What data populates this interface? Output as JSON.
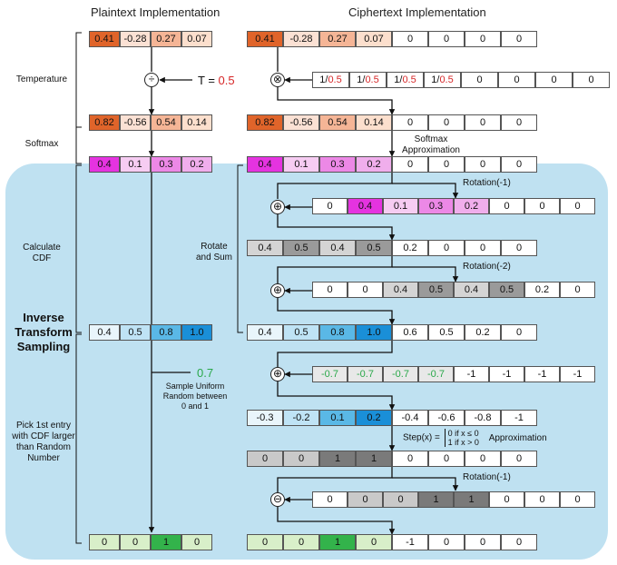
{
  "headers": {
    "plaintext": "Plaintext Implementation",
    "ciphertext": "Ciphertext Implementation"
  },
  "left_labels": {
    "temperature": "Temperature",
    "softmax": "Softmax",
    "calculate_cdf_1": "Calculate",
    "calculate_cdf_2": "CDF",
    "inverse_1": "Inverse",
    "inverse_2": "Transform",
    "inverse_3": "Sampling",
    "pick_1": "Pick 1st entry",
    "pick_2": "with CDF larger",
    "pick_3": "than Random",
    "pick_4": "Number"
  },
  "rotate_sum": {
    "line1": "Rotate",
    "line2": "and Sum"
  },
  "temp": {
    "prefix": "T = ",
    "value": "0.5"
  },
  "softmax_approx": {
    "line1": "Softmax",
    "line2": "Approximation"
  },
  "rotations": {
    "r1": "Rotation(-1)",
    "r2": "Rotation(-2)",
    "r3": "Rotation(-1)"
  },
  "uniform": {
    "value": "0.7",
    "line1": "Sample Uniform",
    "line2": "Random between",
    "line3": "0 and 1"
  },
  "step": {
    "prefix": "Step(x) =",
    "case1": "0 if x ≤ 0",
    "case2": "1 if x > 0",
    "suffix": "Approximation"
  },
  "operators": {
    "divide": "÷",
    "multiply": "⊗",
    "add": "⊕",
    "subtract": "⊖"
  },
  "rows": {
    "p_logits": {
      "cells": [
        "0.41",
        "-0.28",
        "0.27",
        "0.07"
      ],
      "colors": [
        "#e0642a",
        "#fbe1d4",
        "#f5b596",
        "#fcdfcd"
      ]
    },
    "p_scaled": {
      "cells": [
        "0.82",
        "-0.56",
        "0.54",
        "0.14"
      ],
      "colors": [
        "#e0642a",
        "#fbe1d4",
        "#f5b596",
        "#fcdfcd"
      ]
    },
    "p_soft": {
      "cells": [
        "0.4",
        "0.1",
        "0.3",
        "0.2"
      ],
      "colors": [
        "#e533e0",
        "#f6ccf2",
        "#ec88e6",
        "#f0aeec"
      ]
    },
    "p_cdf": {
      "cells": [
        "0.4",
        "0.5",
        "0.8",
        "1.0"
      ],
      "colors": [
        "#e9f5fb",
        "#bfe3f5",
        "#5ab8e6",
        "#1a8fd8"
      ]
    },
    "p_final": {
      "cells": [
        "0",
        "0",
        "1",
        "0"
      ],
      "colors": [
        "#d8efc9",
        "#d8efc9",
        "#33b34b",
        "#d8efc9"
      ]
    },
    "c_logits": {
      "cells": [
        "0.41",
        "-0.28",
        "0.27",
        "0.07",
        "0",
        "0",
        "0",
        "0"
      ],
      "colors": [
        "#e0642a",
        "#fbe1d4",
        "#f5b596",
        "#fcdfcd",
        "#fff",
        "#fff",
        "#fff",
        "#fff"
      ]
    },
    "c_temp": {
      "cells": [
        "1/0.5",
        "1/0.5",
        "1/0.5",
        "1/0.5",
        "0",
        "0",
        "0",
        "0"
      ],
      "colors": [
        "#fff",
        "#fff",
        "#fff",
        "#fff",
        "#fff",
        "#fff",
        "#fff",
        "#fff"
      ]
    },
    "c_scaled": {
      "cells": [
        "0.82",
        "-0.56",
        "0.54",
        "0.14",
        "0",
        "0",
        "0",
        "0"
      ],
      "colors": [
        "#e0642a",
        "#fbe1d4",
        "#f5b596",
        "#fcdfcd",
        "#fff",
        "#fff",
        "#fff",
        "#fff"
      ]
    },
    "c_soft": {
      "cells": [
        "0.4",
        "0.1",
        "0.3",
        "0.2",
        "0",
        "0",
        "0",
        "0"
      ],
      "colors": [
        "#e533e0",
        "#f6ccf2",
        "#ec88e6",
        "#f0aeec",
        "#fff",
        "#fff",
        "#fff",
        "#fff"
      ]
    },
    "c_rot1": {
      "cells": [
        "0",
        "0.4",
        "0.1",
        "0.3",
        "0.2",
        "0",
        "0",
        "0"
      ],
      "colors": [
        "#fff",
        "#e533e0",
        "#f6ccf2",
        "#ec88e6",
        "#f0aeec",
        "#fff",
        "#fff",
        "#fff"
      ]
    },
    "c_sum1": {
      "cells": [
        "0.4",
        "0.5",
        "0.4",
        "0.5",
        "0.2",
        "0",
        "0",
        "0"
      ],
      "colors": [
        "#d4d4d4",
        "#9a9a9a",
        "#d4d4d4",
        "#9a9a9a",
        "#fff",
        "#fff",
        "#fff",
        "#fff"
      ]
    },
    "c_rot2": {
      "cells": [
        "0",
        "0",
        "0.4",
        "0.5",
        "0.4",
        "0.5",
        "0.2",
        "0"
      ],
      "colors": [
        "#fff",
        "#fff",
        "#d4d4d4",
        "#9a9a9a",
        "#d4d4d4",
        "#9a9a9a",
        "#fff",
        "#fff"
      ]
    },
    "c_cdf": {
      "cells": [
        "0.4",
        "0.5",
        "0.8",
        "1.0",
        "0.6",
        "0.5",
        "0.2",
        "0"
      ],
      "colors": [
        "#e9f5fb",
        "#bfe3f5",
        "#5ab8e6",
        "#1a8fd8",
        "#fff",
        "#fff",
        "#fff",
        "#fff"
      ]
    },
    "c_uniform": {
      "cells": [
        "-0.7",
        "-0.7",
        "-0.7",
        "-0.7",
        "-1",
        "-1",
        "-1",
        "-1"
      ],
      "colors": [
        "#e8e8e8",
        "#e8e8e8",
        "#e8e8e8",
        "#e8e8e8",
        "#fff",
        "#fff",
        "#fff",
        "#fff"
      ]
    },
    "c_diff": {
      "cells": [
        "-0.3",
        "-0.2",
        "0.1",
        "0.2",
        "-0.4",
        "-0.6",
        "-0.8",
        "-1"
      ],
      "colors": [
        "#e9f5fb",
        "#bfe3f5",
        "#5ab8e6",
        "#1a8fd8",
        "#fff",
        "#fff",
        "#fff",
        "#fff"
      ]
    },
    "c_step": {
      "cells": [
        "0",
        "0",
        "1",
        "1",
        "0",
        "0",
        "0",
        "0"
      ],
      "colors": [
        "#c9c9c9",
        "#c9c9c9",
        "#7a7a7a",
        "#7a7a7a",
        "#fff",
        "#fff",
        "#fff",
        "#fff"
      ]
    },
    "c_rot3": {
      "cells": [
        "0",
        "0",
        "0",
        "1",
        "1",
        "0",
        "0",
        "0"
      ],
      "colors": [
        "#fff",
        "#c9c9c9",
        "#c9c9c9",
        "#7a7a7a",
        "#7a7a7a",
        "#fff",
        "#fff",
        "#fff"
      ]
    },
    "c_final": {
      "cells": [
        "0",
        "0",
        "1",
        "0",
        "-1",
        "0",
        "0",
        "0"
      ],
      "colors": [
        "#d8efc9",
        "#d8efc9",
        "#33b34b",
        "#d8efc9",
        "#fff",
        "#fff",
        "#fff",
        "#fff"
      ]
    }
  }
}
